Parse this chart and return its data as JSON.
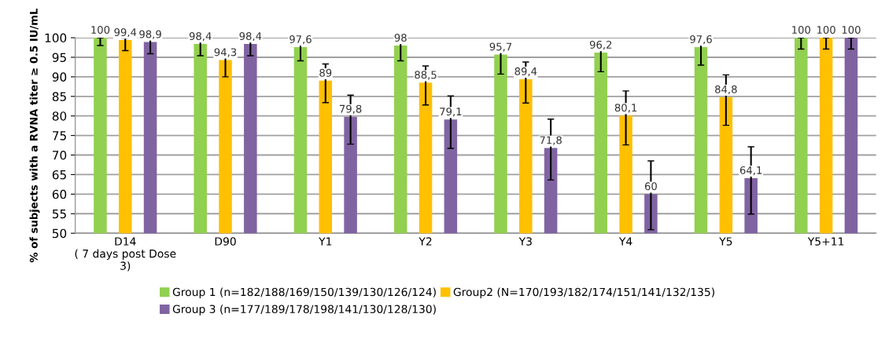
{
  "chart_data": {
    "type": "bar",
    "ylabel": "% of subjects with a RVNA titer ≥ 0.5 IU/mL",
    "categories": [
      "D14\n( 7 days post Dose\n3)",
      "D90",
      "Y1",
      "Y2",
      "Y3",
      "Y4",
      "Y5",
      "Y5+11"
    ],
    "series": [
      {
        "name": "Group 1 (n=182/188/169/150/139/130/126/124)",
        "color": "#92d050",
        "values": [
          100,
          98.4,
          97.6,
          98,
          95.7,
          96.2,
          97.6,
          100
        ],
        "value_labels": [
          "100",
          "98,4",
          "97,6",
          "98",
          "95,7",
          "96,2",
          "97,6",
          "100"
        ],
        "errors": [
          [
            98.0,
            100
          ],
          [
            95.4,
            99.6
          ],
          [
            94.1,
            99.3
          ],
          [
            94.1,
            99.6
          ],
          [
            90.7,
            98.2
          ],
          [
            91.3,
            98.5
          ],
          [
            93.0,
            99.5
          ],
          [
            97.1,
            100
          ]
        ]
      },
      {
        "name": "Group2 (N=170/193/182/174/151/141/132/135)",
        "color": "#ffc000",
        "values": [
          99.4,
          94.3,
          89,
          88.5,
          89.4,
          80.1,
          84.8,
          100
        ],
        "value_labels": [
          "99,4",
          "94,3",
          "89",
          "88,5",
          "89,4",
          "80,1",
          "84,8",
          "100"
        ],
        "errors": [
          [
            96.7,
            99.9
          ],
          [
            90.0,
            97.2
          ],
          [
            83.4,
            93.3
          ],
          [
            82.8,
            92.8
          ],
          [
            83.3,
            93.8
          ],
          [
            72.6,
            86.4
          ],
          [
            77.6,
            90.5
          ],
          [
            97.1,
            100
          ]
        ]
      },
      {
        "name": "Group 3 (n=177/189/178/198/141/130/128/130)",
        "color": "#8064a2",
        "values": [
          98.9,
          98.4,
          79.8,
          79.1,
          71.8,
          60,
          64.1,
          100
        ],
        "value_labels": [
          "98,9",
          "98,4",
          "79,8",
          "79,1",
          "71,8",
          "60",
          "64,1",
          "100"
        ],
        "errors": [
          [
            95.9,
            99.9
          ],
          [
            95.4,
            99.6
          ],
          [
            72.8,
            85.3
          ],
          [
            71.7,
            85.1
          ],
          [
            63.6,
            79.2
          ],
          [
            50.9,
            68.5
          ],
          [
            54.9,
            72.1
          ],
          [
            97.1,
            100
          ]
        ]
      }
    ],
    "ylim": [
      50,
      100
    ],
    "yticks": [
      50,
      55,
      60,
      65,
      70,
      75,
      80,
      85,
      90,
      95,
      100
    ],
    "grid": "y",
    "legend": "bottom"
  }
}
